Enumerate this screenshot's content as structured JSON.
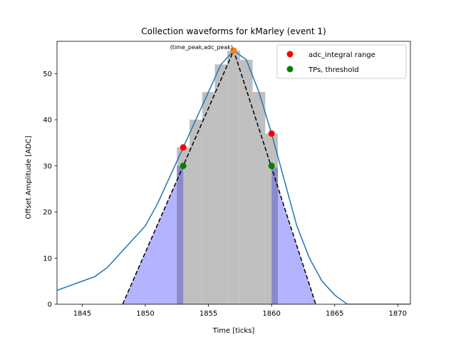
{
  "chart_data": {
    "type": "line",
    "title": "Collection waveforms for kMarley (event 1)",
    "xlabel": "Time [ticks]",
    "ylabel": "Offset Amplitude [ADC]",
    "xlim": [
      1843,
      1871
    ],
    "ylim": [
      0,
      57
    ],
    "xticks": [
      1845,
      1850,
      1855,
      1860,
      1865,
      1870
    ],
    "yticks": [
      0,
      10,
      20,
      30,
      40,
      50
    ],
    "grid": false,
    "legend_position": "top-right",
    "colors": {
      "waveform": "#1f77b4",
      "integral_range": "#ff0000",
      "threshold": "#008000",
      "peak": "#ff7f0e",
      "shaded": "#b3b3ff",
      "shaded_dark": "#8080cc",
      "bars": "#bfbfbf",
      "triangle": "#000000"
    },
    "waveform": {
      "x": [
        1843,
        1844,
        1845,
        1846,
        1847,
        1848,
        1849,
        1850,
        1851,
        1852,
        1853,
        1854,
        1855,
        1856,
        1857,
        1858,
        1859,
        1860,
        1861,
        1862,
        1863,
        1864,
        1865,
        1866,
        1867,
        1868,
        1869,
        1870,
        1871
      ],
      "y": [
        3,
        4,
        5,
        6,
        8,
        11,
        14,
        17,
        22,
        28,
        34,
        40,
        46,
        52,
        55,
        53,
        46,
        37,
        27,
        17,
        10,
        5,
        2,
        0,
        0,
        0,
        0,
        0,
        0
      ]
    },
    "bars": {
      "x": [
        1853,
        1854,
        1855,
        1856,
        1857,
        1858,
        1859,
        1860
      ],
      "y": [
        34,
        40,
        46,
        52,
        55,
        53,
        46,
        37
      ]
    },
    "triangle": {
      "x": [
        1848.2,
        1857,
        1863.5
      ],
      "y": [
        0,
        55,
        0
      ]
    },
    "peak_point": {
      "x": 1857,
      "y": 55,
      "label": "(time_peak,adc_peak)"
    },
    "legend": [
      {
        "label": "adc_integral range",
        "marker": "integral_range"
      },
      {
        "label": "TPs, threshold",
        "marker": "threshold"
      }
    ],
    "integral_range_points": {
      "x": [
        1853,
        1860
      ],
      "y": [
        34,
        37
      ]
    },
    "threshold_points": {
      "x": [
        1853,
        1860
      ],
      "y": [
        30,
        30
      ]
    },
    "threshold": 30
  }
}
